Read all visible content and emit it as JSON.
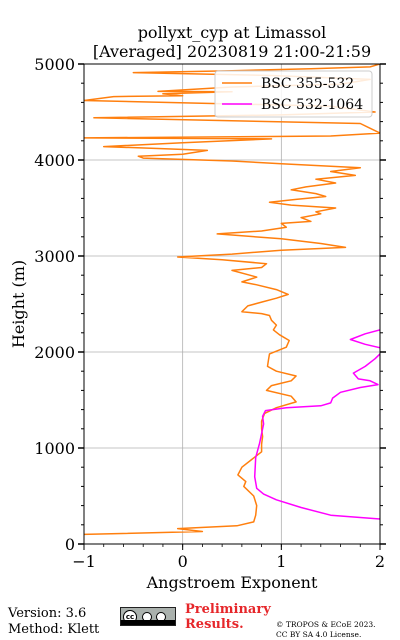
{
  "chart_data": {
    "type": "line",
    "title_line1": "pollyxt_cyp at Limassol",
    "title_line2": "[Averaged] 20230819 21:00-21:59",
    "xlabel": "Angstroem Exponent",
    "ylabel": "Height (m)",
    "xlim": [
      -1,
      2
    ],
    "ylim": [
      0,
      5000
    ],
    "xticks": [
      -1,
      0,
      1,
      2
    ],
    "yticks": [
      0,
      1000,
      2000,
      3000,
      4000,
      5000
    ],
    "grid": true,
    "legend_position": "top-right",
    "series": [
      {
        "name": "BSC 355-532",
        "color": "#ff7f0e",
        "points": [
          [
            -1.0,
            100
          ],
          [
            0.2,
            130
          ],
          [
            -0.05,
            160
          ],
          [
            0.55,
            190
          ],
          [
            0.72,
            230
          ],
          [
            0.74,
            300
          ],
          [
            0.75,
            400
          ],
          [
            0.72,
            500
          ],
          [
            0.62,
            600
          ],
          [
            0.64,
            650
          ],
          [
            0.56,
            720
          ],
          [
            0.6,
            800
          ],
          [
            0.7,
            880
          ],
          [
            0.8,
            960
          ],
          [
            0.8,
            1040
          ],
          [
            0.81,
            1120
          ],
          [
            0.8,
            1200
          ],
          [
            0.8,
            1280
          ],
          [
            0.83,
            1360
          ],
          [
            0.95,
            1420
          ],
          [
            1.15,
            1480
          ],
          [
            1.1,
            1540
          ],
          [
            0.85,
            1600
          ],
          [
            0.9,
            1650
          ],
          [
            1.1,
            1700
          ],
          [
            1.15,
            1750
          ],
          [
            0.95,
            1800
          ],
          [
            0.86,
            1850
          ],
          [
            0.87,
            1920
          ],
          [
            0.88,
            1980
          ],
          [
            1.05,
            2050
          ],
          [
            1.08,
            2120
          ],
          [
            0.98,
            2180
          ],
          [
            0.92,
            2230
          ],
          [
            0.95,
            2280
          ],
          [
            0.9,
            2330
          ],
          [
            0.88,
            2380
          ],
          [
            0.8,
            2400
          ],
          [
            0.6,
            2420
          ],
          [
            0.66,
            2480
          ],
          [
            0.8,
            2520
          ],
          [
            0.95,
            2560
          ],
          [
            1.07,
            2600
          ],
          [
            0.95,
            2650
          ],
          [
            0.75,
            2700
          ],
          [
            0.6,
            2730
          ],
          [
            0.75,
            2780
          ],
          [
            0.68,
            2800
          ],
          [
            0.5,
            2850
          ],
          [
            0.8,
            2880
          ],
          [
            0.85,
            2920
          ],
          [
            0.4,
            2960
          ],
          [
            -0.05,
            2990
          ],
          [
            0.5,
            3020
          ],
          [
            1.0,
            3060
          ],
          [
            1.65,
            3090
          ],
          [
            1.4,
            3130
          ],
          [
            1.0,
            3180
          ],
          [
            0.6,
            3210
          ],
          [
            0.35,
            3230
          ],
          [
            0.8,
            3260
          ],
          [
            1.05,
            3300
          ],
          [
            1.0,
            3340
          ],
          [
            1.3,
            3360
          ],
          [
            1.2,
            3400
          ],
          [
            1.4,
            3440
          ],
          [
            1.35,
            3460
          ],
          [
            1.55,
            3500
          ],
          [
            1.1,
            3530
          ],
          [
            0.88,
            3560
          ],
          [
            1.15,
            3590
          ],
          [
            1.45,
            3620
          ],
          [
            1.35,
            3650
          ],
          [
            1.1,
            3690
          ],
          [
            1.25,
            3720
          ],
          [
            1.55,
            3760
          ],
          [
            1.35,
            3800
          ],
          [
            1.75,
            3840
          ],
          [
            1.5,
            3880
          ],
          [
            1.8,
            3920
          ],
          [
            1.0,
            3960
          ],
          [
            0.5,
            3990
          ],
          [
            -0.4,
            4020
          ],
          [
            -0.45,
            4040
          ],
          [
            0.0,
            4060
          ],
          [
            0.25,
            4100
          ],
          [
            -0.25,
            4120
          ],
          [
            -0.8,
            4140
          ],
          [
            0.0,
            4180
          ],
          [
            0.9,
            4220
          ],
          [
            -1.0,
            4230
          ],
          [
            1.5,
            4250
          ],
          [
            2.0,
            4280
          ],
          [
            1.8,
            4380
          ],
          [
            -0.9,
            4440
          ],
          [
            1.0,
            4470
          ],
          [
            1.95,
            4500
          ],
          [
            1.5,
            4560
          ],
          [
            -1.0,
            4620
          ],
          [
            -0.7,
            4660
          ],
          [
            0.0,
            4670
          ],
          [
            -0.2,
            4690
          ],
          [
            0.5,
            4710
          ],
          [
            -0.25,
            4715
          ],
          [
            0.5,
            4760
          ],
          [
            1.6,
            4790
          ],
          [
            1.9,
            4840
          ],
          [
            0.9,
            4880
          ],
          [
            -0.5,
            4910
          ],
          [
            0.5,
            4930
          ],
          [
            1.3,
            4950
          ],
          [
            1.9,
            4970
          ],
          [
            2.0,
            5000
          ]
        ]
      },
      {
        "name": "BSC 532-1064",
        "color": "#ff00ff",
        "points": [
          [
            2.0,
            260
          ],
          [
            1.5,
            300
          ],
          [
            1.2,
            380
          ],
          [
            0.95,
            460
          ],
          [
            0.82,
            520
          ],
          [
            0.75,
            580
          ],
          [
            0.73,
            700
          ],
          [
            0.74,
            900
          ],
          [
            0.78,
            1050
          ],
          [
            0.8,
            1150
          ],
          [
            0.82,
            1250
          ],
          [
            0.81,
            1330
          ],
          [
            0.84,
            1390
          ],
          [
            1.05,
            1420
          ],
          [
            1.4,
            1440
          ],
          [
            1.5,
            1470
          ],
          [
            1.52,
            1520
          ],
          [
            1.6,
            1580
          ],
          [
            1.8,
            1630
          ],
          [
            1.98,
            1660
          ],
          [
            1.9,
            1700
          ],
          [
            1.78,
            1720
          ],
          [
            1.73,
            1780
          ],
          [
            1.85,
            1850
          ],
          [
            1.95,
            1930
          ],
          [
            2.0,
            1980
          ],
          [
            2.02,
            2040
          ],
          [
            1.85,
            2080
          ],
          [
            1.7,
            2130
          ],
          [
            1.85,
            2190
          ],
          [
            2.0,
            2230
          ]
        ]
      }
    ]
  },
  "footer": {
    "version": "Version: 3.6",
    "method": "Method: Klett",
    "prelim_line1": "Preliminary",
    "prelim_line2": "Results.",
    "copyright_line1": "© TROPOS & ECoE 2023.",
    "copyright_line2": "CC BY SA 4.0 License.",
    "badge_text": "cc"
  }
}
